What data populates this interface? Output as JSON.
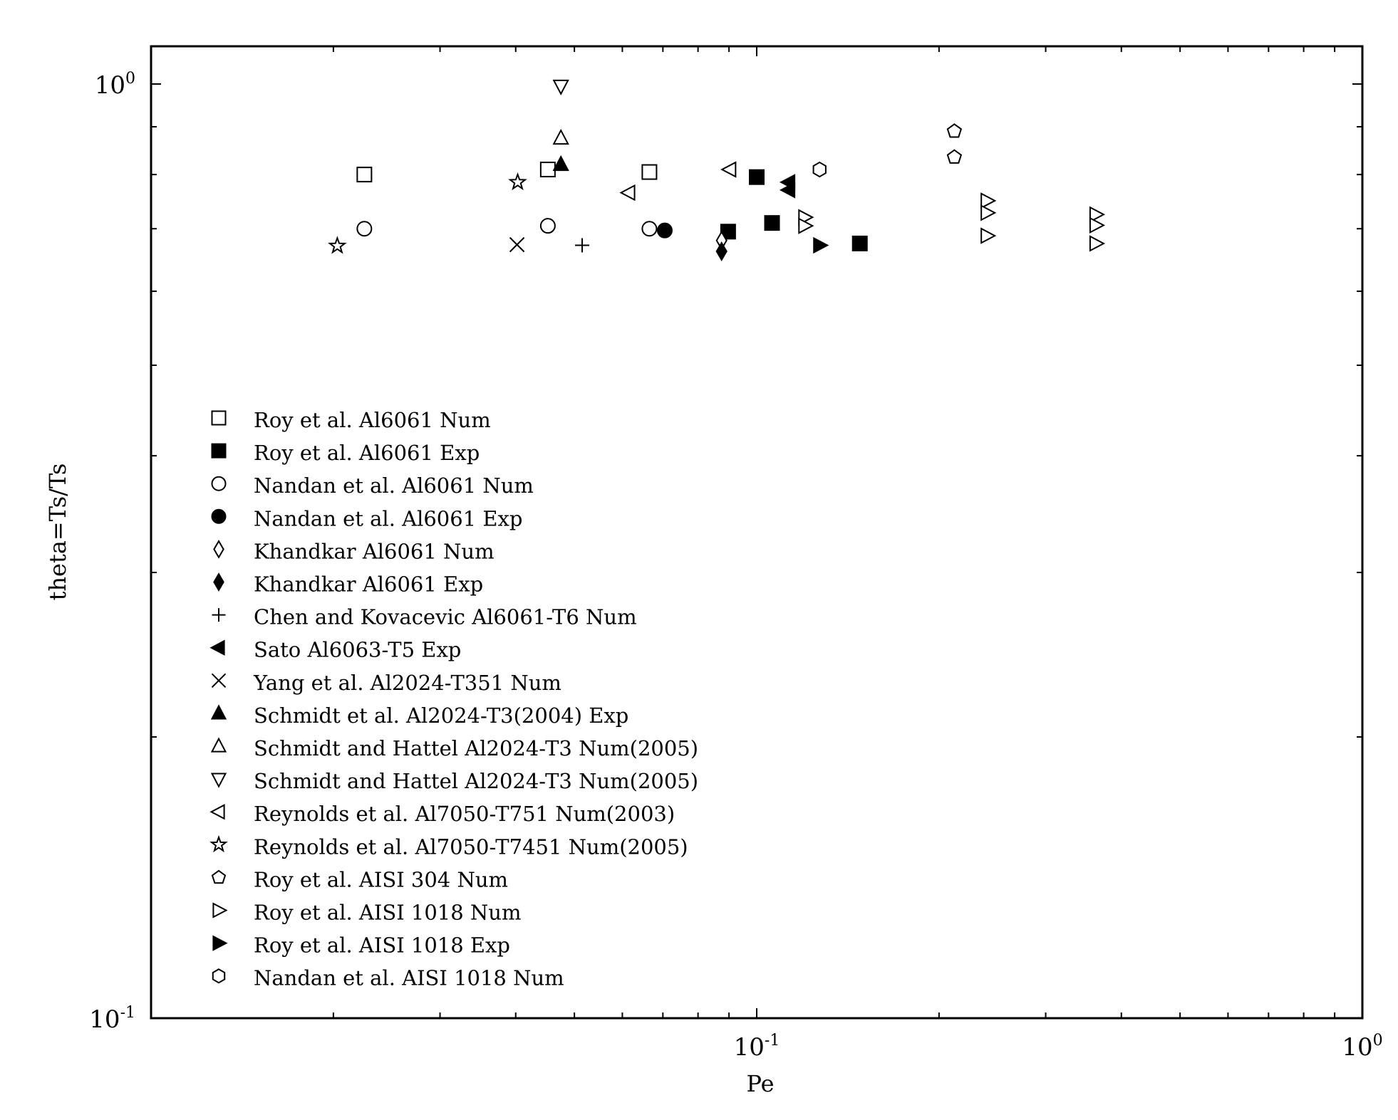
{
  "chart_data": {
    "type": "scatter",
    "title": "",
    "xlabel": "Pe",
    "ylabel": "theta=Ts/Ts",
    "xscale": "log",
    "yscale": "log",
    "xlim": [
      0.01,
      1
    ],
    "ylim": [
      0.1,
      1
    ],
    "grid": false,
    "legend_position": "left",
    "x_ticks": [
      {
        "value": 0.1,
        "base": "10",
        "exp": "-1"
      },
      {
        "value": 1,
        "base": "10",
        "exp": "0"
      }
    ],
    "y_ticks": [
      {
        "value": 0.1,
        "base": "10",
        "exp": "-1"
      },
      {
        "value": 1,
        "base": "10",
        "exp": "0"
      }
    ],
    "series": [
      {
        "name": "Roy et al. Al6061 Num",
        "marker": "square",
        "filled": false,
        "points": [
          [
            0.0225,
            0.8
          ],
          [
            0.0452,
            0.81
          ],
          [
            0.0665,
            0.805
          ]
        ]
      },
      {
        "name": "Roy et al. Al6061 Exp",
        "marker": "square",
        "filled": true,
        "points": [
          [
            0.0897,
            0.695
          ],
          [
            0.1,
            0.795
          ],
          [
            0.106,
            0.71
          ],
          [
            0.148,
            0.675
          ]
        ]
      },
      {
        "name": "Nandan et al. Al6061 Num",
        "marker": "circle",
        "filled": false,
        "points": [
          [
            0.0225,
            0.7
          ],
          [
            0.0452,
            0.705
          ],
          [
            0.0665,
            0.7
          ]
        ]
      },
      {
        "name": "Nandan et al. Al6061 Exp",
        "marker": "circle",
        "filled": true,
        "points": [
          [
            0.0705,
            0.697
          ]
        ]
      },
      {
        "name": "Khandkar Al6061 Num",
        "marker": "diamond",
        "filled": false,
        "points": [
          [
            0.0875,
            0.68
          ]
        ]
      },
      {
        "name": "Khandkar Al6061 Exp",
        "marker": "diamond",
        "filled": true,
        "points": [
          [
            0.0875,
            0.662
          ]
        ]
      },
      {
        "name": "Chen and Kovacevic Al6061-T6 Num",
        "marker": "plus",
        "filled": false,
        "points": [
          [
            0.0515,
            0.672
          ]
        ]
      },
      {
        "name": "Sato Al6063-T5 Exp",
        "marker": "triangle-left",
        "filled": true,
        "points": [
          [
            0.113,
            0.785
          ],
          [
            0.113,
            0.77
          ]
        ]
      },
      {
        "name": "Yang et al. Al2024-T351 Num",
        "marker": "x",
        "filled": false,
        "points": [
          [
            0.0402,
            0.673
          ]
        ]
      },
      {
        "name": "Schmidt et al. Al2024-T3(2004) Exp",
        "marker": "triangle-up",
        "filled": true,
        "points": [
          [
            0.0475,
            0.82
          ]
        ]
      },
      {
        "name": "Schmidt and Hattel Al2024-T3 Num(2005)",
        "marker": "triangle-up",
        "filled": false,
        "points": [
          [
            0.0475,
            0.875
          ]
        ]
      },
      {
        "name": "Schmidt and Hattel Al2024-T3 Num(2005)",
        "marker": "triangle-down",
        "filled": false,
        "points": [
          [
            0.0475,
            0.995
          ]
        ]
      },
      {
        "name": "Reynolds et al. Al7050-T751 Num(2003)",
        "marker": "triangle-left",
        "filled": false,
        "points": [
          [
            0.0615,
            0.765
          ],
          [
            0.0903,
            0.81
          ]
        ]
      },
      {
        "name": "Reynolds et al. Al7050-T7451 Num(2005)",
        "marker": "star",
        "filled": false,
        "points": [
          [
            0.0203,
            0.671
          ],
          [
            0.0403,
            0.785
          ]
        ]
      },
      {
        "name": "Roy et al. AISI 304 Num",
        "marker": "pentagon",
        "filled": false,
        "points": [
          [
            0.212,
            0.89
          ],
          [
            0.212,
            0.835
          ]
        ]
      },
      {
        "name": "Roy et al. AISI 1018 Num",
        "marker": "triangle-right",
        "filled": false,
        "points": [
          [
            0.12,
            0.72
          ],
          [
            0.12,
            0.705
          ],
          [
            0.24,
            0.75
          ],
          [
            0.24,
            0.728
          ],
          [
            0.24,
            0.688
          ],
          [
            0.363,
            0.725
          ],
          [
            0.363,
            0.706
          ],
          [
            0.363,
            0.675
          ]
        ]
      },
      {
        "name": "Roy et al. AISI 1018 Exp",
        "marker": "triangle-right",
        "filled": true,
        "points": [
          [
            0.127,
            0.672
          ]
        ]
      },
      {
        "name": "Nandan et al. AISI 1018 Num",
        "marker": "hexagon",
        "filled": false,
        "points": [
          [
            0.127,
            0.81
          ]
        ]
      }
    ]
  }
}
